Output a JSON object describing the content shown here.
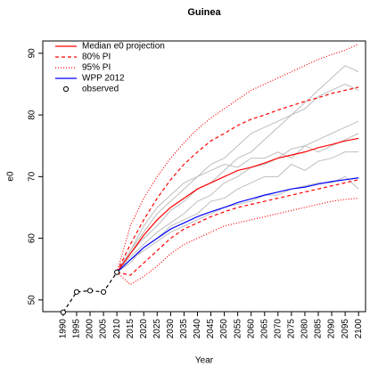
{
  "chart_data": {
    "type": "line",
    "title": "Guinea",
    "xlabel": "Year",
    "ylabel": "e0",
    "x": [
      2010,
      2015,
      2020,
      2025,
      2030,
      2035,
      2040,
      2045,
      2050,
      2055,
      2060,
      2065,
      2070,
      2075,
      2080,
      2085,
      2090,
      2095,
      2100
    ],
    "xlim": [
      1982.4,
      2102.6
    ],
    "ylim": [
      48.1,
      92
    ],
    "xticks": [
      1990,
      1995,
      2000,
      2005,
      2010,
      2015,
      2020,
      2025,
      2030,
      2035,
      2040,
      2045,
      2050,
      2055,
      2060,
      2065,
      2070,
      2075,
      2080,
      2085,
      2090,
      2095,
      2100
    ],
    "yticks": [
      50,
      60,
      70,
      80,
      90
    ],
    "legend": "top-left",
    "trajectories": {
      "color": "#bebebe",
      "runs": [
        {
          "values": [
            54.5,
            57,
            59,
            61,
            62.5,
            64,
            66,
            67,
            69,
            70,
            71.5,
            72,
            73,
            74.5,
            75,
            76,
            77,
            78,
            79
          ]
        },
        {
          "values": [
            54.5,
            58,
            61,
            64,
            66,
            68,
            70,
            72,
            73,
            75,
            77,
            78,
            79,
            80,
            81,
            83,
            84,
            85,
            84
          ]
        },
        {
          "values": [
            54.5,
            56,
            58.5,
            60,
            62,
            63,
            64,
            66,
            66.5,
            68,
            69,
            70,
            70,
            72,
            71,
            72.5,
            73,
            74,
            74
          ]
        },
        {
          "values": [
            54.5,
            57.5,
            60,
            62,
            64.5,
            66,
            68,
            69,
            71,
            73,
            74,
            76,
            78,
            80,
            82,
            84,
            86,
            88,
            87
          ]
        },
        {
          "values": [
            54.5,
            56.5,
            58,
            59.5,
            61,
            62,
            63,
            64,
            65,
            65.5,
            66,
            67,
            67,
            68,
            68.5,
            69,
            69,
            70,
            68
          ]
        },
        {
          "values": [
            54.5,
            58,
            62,
            65,
            67,
            69,
            70,
            71,
            72,
            71.5,
            73,
            73,
            74,
            73,
            75,
            74,
            75,
            76,
            77
          ]
        }
      ]
    },
    "series": [
      {
        "name": "Median e0 projection",
        "color": "#ff0000",
        "dash": "solid",
        "values": [
          54.5,
          57.5,
          60.5,
          63,
          65,
          66.5,
          68,
          69,
          70,
          71,
          71.5,
          72.2,
          73,
          73.5,
          74,
          74.7,
          75.2,
          75.8,
          76.2
        ]
      },
      {
        "name": "80% PI",
        "color": "#ff0000",
        "dash": "dashed",
        "values": [
          54.5,
          59,
          63,
          66.5,
          69.5,
          72,
          74,
          75.8,
          77,
          78.3,
          79.3,
          80,
          80.8,
          81.5,
          82.2,
          82.8,
          83.5,
          84,
          84.5
        ]
      },
      {
        "name": "80% PI",
        "color": "#ff0000",
        "dash": "dashed",
        "values": [
          54.5,
          54,
          56,
          58,
          60,
          61.5,
          62.5,
          63.5,
          64.3,
          65,
          65.5,
          66,
          66.5,
          67,
          67.5,
          68,
          68.5,
          69,
          69.5
        ]
      },
      {
        "name": "95% PI",
        "color": "#ff0000",
        "dash": "dotted",
        "values": [
          54.5,
          62,
          66.5,
          70,
          73,
          75.5,
          77.7,
          79.5,
          81,
          82.5,
          84,
          85,
          86,
          87,
          88,
          89,
          89.8,
          90.5,
          91.5
        ]
      },
      {
        "name": "95% PI",
        "color": "#ff0000",
        "dash": "dotted",
        "values": [
          54.5,
          52.5,
          53.8,
          55.5,
          57.5,
          59,
          60,
          61,
          62,
          62.5,
          63,
          63.5,
          64,
          64.5,
          65,
          65.5,
          66,
          66.3,
          66.5
        ]
      },
      {
        "name": "WPP 2012",
        "color": "#0000ff",
        "dash": "solid",
        "values": [
          54.5,
          56.5,
          58.5,
          60,
          61.5,
          62.5,
          63.5,
          64.3,
          65,
          65.8,
          66.4,
          67,
          67.5,
          68,
          68.3,
          68.8,
          69.2,
          69.5,
          69.8
        ]
      },
      {
        "name": "observed",
        "color": "#000000",
        "dash": "dashed",
        "marker": "circle",
        "x": [
          1990,
          1995,
          2000,
          2005,
          2010
        ],
        "values": [
          48,
          51.3,
          51.5,
          51.3,
          54.5
        ]
      }
    ]
  }
}
